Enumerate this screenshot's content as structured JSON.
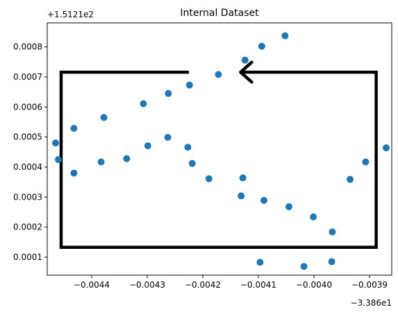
{
  "chart_data": {
    "type": "scatter",
    "title": "Internal Dataset",
    "xlabel": "",
    "ylabel": "",
    "x_offset_label": "−3.386e1",
    "y_offset_label": "+1.5121e2",
    "xlim": [
      -0.00448,
      -0.00386
    ],
    "ylim": [
      4e-05,
      0.00088
    ],
    "grid": false,
    "legend": "none",
    "point_color": "#1f77b4",
    "annotation_color": "#000000",
    "xticks": [
      {
        "value": -0.0044,
        "label": "−0.0044"
      },
      {
        "value": -0.0043,
        "label": "−0.0043"
      },
      {
        "value": -0.0042,
        "label": "−0.0042"
      },
      {
        "value": -0.0041,
        "label": "−0.0041"
      },
      {
        "value": -0.004,
        "label": "−0.0040"
      },
      {
        "value": -0.0039,
        "label": "−0.0039"
      }
    ],
    "yticks": [
      {
        "value": 0.0001,
        "label": "0.0001"
      },
      {
        "value": 0.0002,
        "label": "0.0002"
      },
      {
        "value": 0.0003,
        "label": "0.0003"
      },
      {
        "value": 0.0004,
        "label": "0.0004"
      },
      {
        "value": 0.0005,
        "label": "0.0005"
      },
      {
        "value": 0.0006,
        "label": "0.0006"
      },
      {
        "value": 0.0007,
        "label": "0.0007"
      },
      {
        "value": 0.0008,
        "label": "0.0008"
      }
    ],
    "points": [
      {
        "x": -0.004465,
        "y": 0.00048
      },
      {
        "x": -0.00446,
        "y": 0.000425
      },
      {
        "x": -0.004432,
        "y": 0.000529
      },
      {
        "x": -0.004432,
        "y": 0.00038
      },
      {
        "x": -0.004383,
        "y": 0.000417
      },
      {
        "x": -0.004378,
        "y": 0.000565
      },
      {
        "x": -0.004337,
        "y": 0.000428
      },
      {
        "x": -0.004307,
        "y": 0.000611
      },
      {
        "x": -0.004299,
        "y": 0.000471
      },
      {
        "x": -0.004262,
        "y": 0.000645
      },
      {
        "x": -0.004263,
        "y": 0.000499
      },
      {
        "x": -0.004227,
        "y": 0.000466
      },
      {
        "x": -0.004224,
        "y": 0.000673
      },
      {
        "x": -0.004219,
        "y": 0.000412
      },
      {
        "x": -0.004189,
        "y": 0.000361
      },
      {
        "x": -0.004172,
        "y": 0.000708
      },
      {
        "x": -0.004131,
        "y": 0.000304
      },
      {
        "x": -0.004128,
        "y": 0.000364
      },
      {
        "x": -0.004124,
        "y": 0.000756
      },
      {
        "x": -0.00409,
        "y": 0.000289
      },
      {
        "x": -0.004094,
        "y": 0.000802
      },
      {
        "x": -0.004097,
        "y": 8.3e-05
      },
      {
        "x": -0.004052,
        "y": 0.000837
      },
      {
        "x": -0.004045,
        "y": 0.000268
      },
      {
        "x": -0.004018,
        "y": 6.9e-05
      },
      {
        "x": -0.004001,
        "y": 0.000234
      },
      {
        "x": -0.003968,
        "y": 8.5e-05
      },
      {
        "x": -0.003967,
        "y": 0.000184
      },
      {
        "x": -0.003935,
        "y": 0.000359
      },
      {
        "x": -0.003907,
        "y": 0.000417
      },
      {
        "x": -0.00387,
        "y": 0.000464
      }
    ],
    "annotation_path": [
      [
        -0.004225,
        0.000716
      ],
      [
        -0.004455,
        0.000716
      ],
      [
        -0.004455,
        0.000133
      ],
      [
        -0.003888,
        0.000133
      ],
      [
        -0.003888,
        0.000716
      ],
      [
        -0.004132,
        0.000716
      ]
    ],
    "annotation_arrowhead": [
      [
        -0.004112,
        0.000749
      ],
      [
        -0.004132,
        0.000716
      ],
      [
        -0.004112,
        0.000683
      ]
    ]
  }
}
